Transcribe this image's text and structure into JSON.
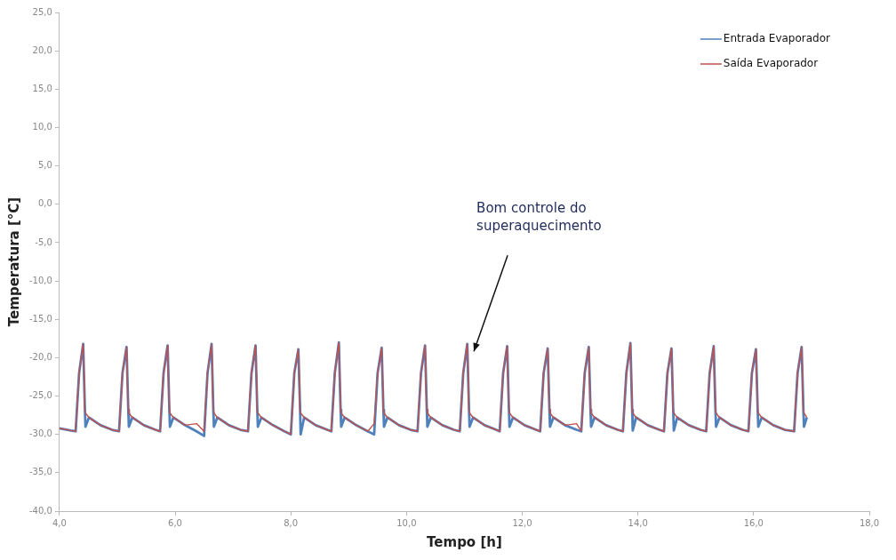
{
  "chart_data": {
    "type": "line",
    "xlabel": "Tempo [h]",
    "ylabel": "Temperatura [°C]",
    "xlim": [
      4,
      18
    ],
    "xticks": [
      {
        "value": 4,
        "label": "4,0"
      },
      {
        "value": 6,
        "label": "6,0"
      },
      {
        "value": 8,
        "label": "8,0"
      },
      {
        "value": 10,
        "label": "10,0"
      },
      {
        "value": 12,
        "label": "12,0"
      },
      {
        "value": 14,
        "label": "14,0"
      },
      {
        "value": 16,
        "label": "16,0"
      },
      {
        "value": 18,
        "label": "18,0"
      }
    ],
    "ylim": [
      -40,
      25
    ],
    "yticks": [
      {
        "value": -40,
        "label": "-40,0"
      },
      {
        "value": -35,
        "label": "-35,0"
      },
      {
        "value": -30,
        "label": "-30,0"
      },
      {
        "value": -25,
        "label": "-25,0"
      },
      {
        "value": -20,
        "label": "-20,0"
      },
      {
        "value": -15,
        "label": "-15,0"
      },
      {
        "value": -10,
        "label": "-10,0"
      },
      {
        "value": -5,
        "label": "-5,0"
      },
      {
        "value": 0,
        "label": "0,0"
      },
      {
        "value": 5,
        "label": "5,0"
      },
      {
        "value": 10,
        "label": "10,0"
      },
      {
        "value": 15,
        "label": "15,0"
      },
      {
        "value": 20,
        "label": "20,0"
      },
      {
        "value": 25,
        "label": "25,0"
      }
    ],
    "legend": "top right",
    "marker": "none",
    "line_style": "solid",
    "annotations": [
      "Bom controle do\nsuperaquecimento"
    ],
    "x": [
      4.0,
      4.2,
      4.28,
      4.34,
      4.41,
      4.44,
      4.45,
      4.51,
      4.71,
      4.91,
      5.03,
      5.09,
      5.16,
      5.19,
      5.2,
      5.26,
      5.46,
      5.66,
      5.74,
      5.8,
      5.87,
      5.9,
      5.91,
      5.97,
      6.17,
      6.37,
      6.5,
      6.56,
      6.63,
      6.66,
      6.67,
      6.73,
      6.93,
      7.13,
      7.26,
      7.32,
      7.39,
      7.42,
      7.43,
      7.49,
      7.69,
      7.89,
      8.0,
      8.06,
      8.13,
      8.16,
      8.17,
      8.23,
      8.43,
      8.63,
      8.7,
      8.76,
      8.83,
      8.86,
      8.87,
      8.93,
      9.13,
      9.33,
      9.44,
      9.5,
      9.57,
      9.6,
      9.61,
      9.67,
      9.87,
      10.07,
      10.19,
      10.25,
      10.32,
      10.35,
      10.36,
      10.42,
      10.62,
      10.82,
      10.92,
      10.98,
      11.05,
      11.08,
      11.09,
      11.15,
      11.35,
      11.55,
      11.61,
      11.67,
      11.74,
      11.77,
      11.78,
      11.84,
      12.04,
      12.24,
      12.31,
      12.37,
      12.44,
      12.47,
      12.48,
      12.54,
      12.74,
      12.94,
      13.02,
      13.08,
      13.15,
      13.18,
      13.19,
      13.25,
      13.45,
      13.65,
      13.74,
      13.8,
      13.87,
      13.9,
      13.91,
      13.97,
      14.17,
      14.37,
      14.45,
      14.51,
      14.58,
      14.61,
      14.62,
      14.68,
      14.88,
      15.08,
      15.18,
      15.24,
      15.31,
      15.34,
      15.35,
      15.41,
      15.61,
      15.81,
      15.91,
      15.97,
      16.04,
      16.07,
      16.08,
      16.14,
      16.34,
      16.54,
      16.7,
      16.76,
      16.83,
      16.86,
      16.87,
      16.92
    ],
    "series": [
      {
        "name": "Entrada Evaporador",
        "color": "#4f81bd",
        "values": [
          -29.2,
          -29.5,
          -29.6,
          -22.0,
          -18.2,
          -26.8,
          -29.0,
          -27.8,
          -28.8,
          -29.4,
          -29.6,
          -22.0,
          -18.6,
          -26.8,
          -29.0,
          -27.8,
          -28.8,
          -29.4,
          -29.6,
          -22.0,
          -18.4,
          -26.8,
          -29.0,
          -27.8,
          -28.8,
          -29.6,
          -30.2,
          -22.0,
          -18.2,
          -26.8,
          -29.0,
          -27.8,
          -28.8,
          -29.4,
          -29.6,
          -22.0,
          -18.4,
          -26.8,
          -29.0,
          -27.8,
          -28.8,
          -29.6,
          -30.0,
          -22.0,
          -18.9,
          -26.8,
          -30.0,
          -27.8,
          -28.8,
          -29.4,
          -29.6,
          -22.0,
          -18.0,
          -26.8,
          -29.0,
          -27.8,
          -28.8,
          -29.6,
          -30.0,
          -22.0,
          -18.7,
          -26.8,
          -29.0,
          -27.8,
          -28.8,
          -29.4,
          -29.6,
          -22.0,
          -18.4,
          -26.8,
          -29.0,
          -27.8,
          -28.8,
          -29.4,
          -29.6,
          -22.0,
          -18.2,
          -26.8,
          -29.0,
          -27.8,
          -28.8,
          -29.4,
          -29.6,
          -22.0,
          -18.5,
          -26.8,
          -29.0,
          -27.8,
          -28.8,
          -29.4,
          -29.6,
          -22.0,
          -18.8,
          -26.8,
          -29.0,
          -27.8,
          -28.8,
          -29.4,
          -29.6,
          -22.0,
          -18.6,
          -26.8,
          -29.0,
          -27.8,
          -28.8,
          -29.4,
          -29.6,
          -22.0,
          -18.1,
          -26.8,
          -29.5,
          -27.8,
          -28.8,
          -29.4,
          -29.6,
          -22.0,
          -18.8,
          -26.8,
          -29.5,
          -27.8,
          -28.8,
          -29.4,
          -29.6,
          -22.0,
          -18.5,
          -26.8,
          -29.0,
          -27.8,
          -28.8,
          -29.4,
          -29.6,
          -22.0,
          -18.9,
          -26.8,
          -29.0,
          -27.8,
          -28.8,
          -29.4,
          -29.6,
          -22.0,
          -18.6,
          -26.8,
          -29.0,
          -27.8
        ]
      },
      {
        "name": "Saída Evaporador",
        "color": "#c0504d",
        "values": [
          -29.2,
          -29.5,
          -29.6,
          -22.0,
          -18.2,
          -26.8,
          -27.2,
          -27.8,
          -28.8,
          -29.4,
          -29.6,
          -22.0,
          -18.6,
          -26.8,
          -27.2,
          -27.8,
          -28.8,
          -29.4,
          -29.6,
          -22.0,
          -18.4,
          -26.8,
          -27.2,
          -27.8,
          -28.8,
          -28.6,
          -29.6,
          -22.0,
          -18.2,
          -26.8,
          -27.2,
          -27.8,
          -28.8,
          -29.4,
          -29.6,
          -22.0,
          -18.4,
          -26.8,
          -27.2,
          -27.8,
          -28.8,
          -29.6,
          -30.0,
          -22.0,
          -18.9,
          -26.8,
          -27.2,
          -27.8,
          -28.8,
          -29.4,
          -29.6,
          -22.0,
          -18.0,
          -26.8,
          -27.2,
          -27.8,
          -28.8,
          -29.6,
          -28.6,
          -22.0,
          -18.7,
          -26.8,
          -27.2,
          -27.8,
          -28.8,
          -29.4,
          -29.6,
          -22.0,
          -18.4,
          -26.8,
          -27.2,
          -27.8,
          -28.8,
          -29.4,
          -29.6,
          -22.0,
          -18.2,
          -26.8,
          -27.2,
          -27.8,
          -28.8,
          -29.4,
          -29.6,
          -22.0,
          -18.5,
          -26.8,
          -27.2,
          -27.8,
          -28.8,
          -29.4,
          -29.6,
          -22.0,
          -18.8,
          -26.8,
          -27.2,
          -27.8,
          -28.8,
          -28.6,
          -29.6,
          -22.0,
          -18.6,
          -26.8,
          -27.2,
          -27.8,
          -28.8,
          -29.4,
          -29.6,
          -22.0,
          -18.1,
          -26.8,
          -27.2,
          -27.8,
          -28.8,
          -29.4,
          -29.6,
          -22.0,
          -18.8,
          -26.8,
          -27.2,
          -27.8,
          -28.8,
          -29.4,
          -29.6,
          -22.0,
          -18.5,
          -26.8,
          -27.2,
          -27.8,
          -28.8,
          -29.4,
          -29.6,
          -22.0,
          -18.9,
          -26.8,
          -27.2,
          -27.8,
          -28.8,
          -29.4,
          -29.6,
          -22.0,
          -18.6,
          -26.8,
          -27.2,
          -27.8
        ]
      }
    ]
  }
}
